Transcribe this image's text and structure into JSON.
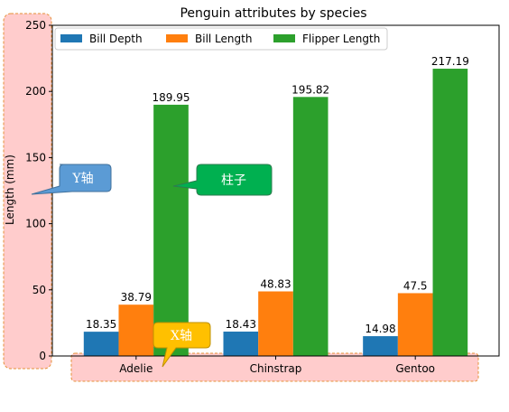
{
  "chart_data": {
    "type": "bar",
    "title": "Penguin attributes by species",
    "xlabel": "",
    "ylabel": "Length (mm)",
    "categories": [
      "Adelie",
      "Chinstrap",
      "Gentoo"
    ],
    "series": [
      {
        "name": "Bill Depth",
        "values": [
          18.35,
          18.43,
          14.98
        ],
        "color": "#1f77b4"
      },
      {
        "name": "Bill Length",
        "values": [
          38.79,
          48.83,
          47.5
        ],
        "color": "#ff7f0e"
      },
      {
        "name": "Flipper Length",
        "values": [
          189.95,
          195.82,
          217.19
        ],
        "color": "#2ca02c"
      }
    ],
    "data_labels": [
      [
        "18.35",
        "38.79",
        "189.95"
      ],
      [
        "18.43",
        "48.83",
        "195.82"
      ],
      [
        "14.98",
        "47.5",
        "217.19"
      ]
    ],
    "ylim": [
      0,
      250
    ],
    "yticks": [
      0,
      50,
      100,
      150,
      200,
      250
    ],
    "grid": false,
    "legend_position": "top-left",
    "legend_columns": 3
  },
  "annotations": {
    "y_axis_callout": "Y轴",
    "bar_callout": "柱子",
    "x_axis_callout": "X轴",
    "colors": {
      "y_axis_callout": "#5b9bd5",
      "bar_callout": "#00b050",
      "x_axis_callout": "#ffc000",
      "highlight_fill": "#ffcccc",
      "highlight_border": "#e69138"
    }
  }
}
